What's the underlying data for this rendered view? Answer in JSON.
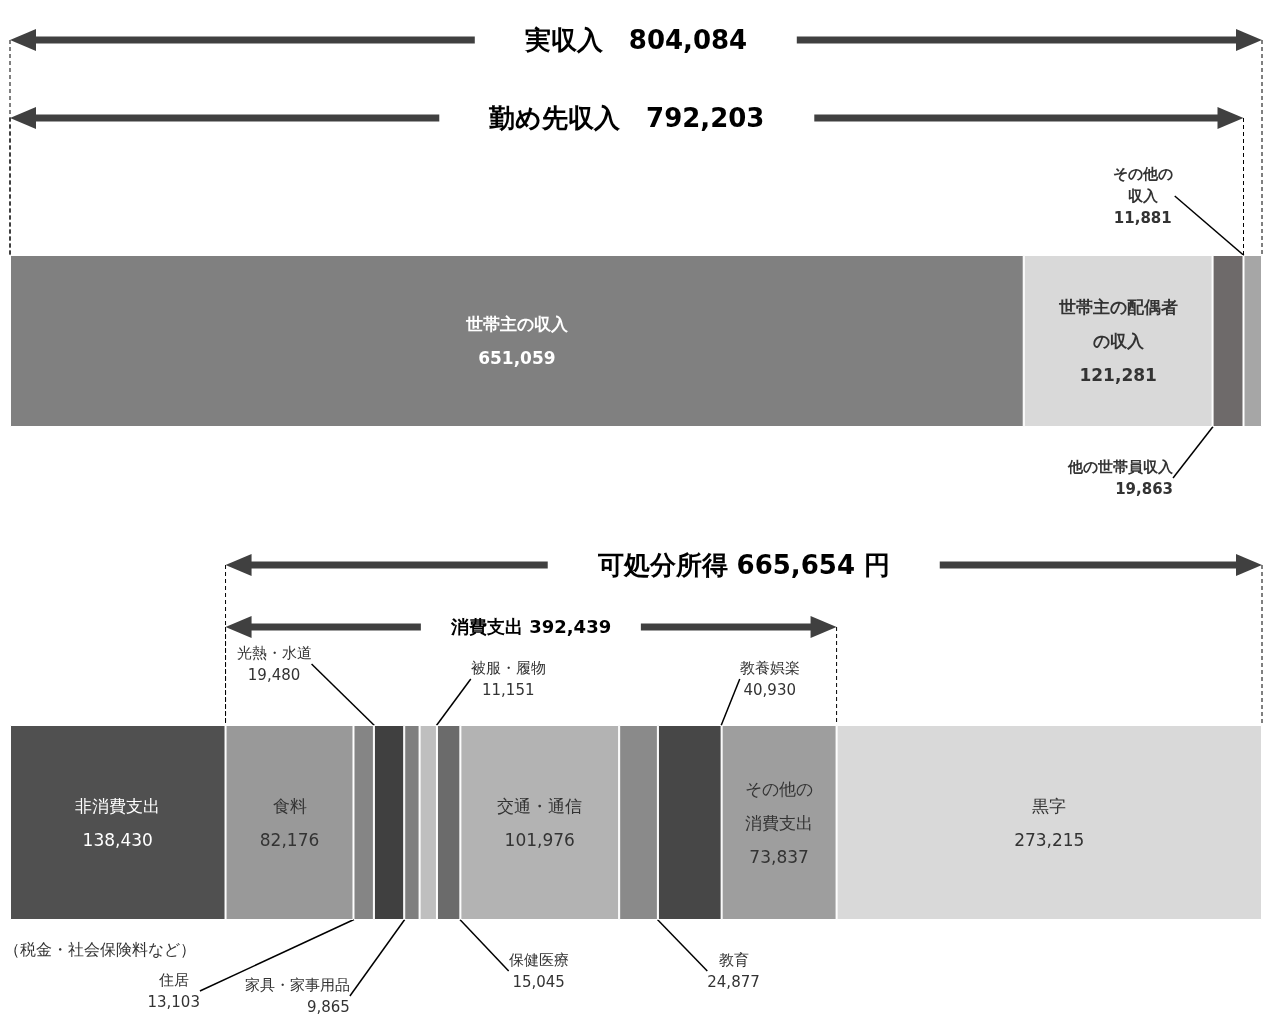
{
  "chart_data": [
    {
      "type": "bar",
      "orientation": "horizontal",
      "stacked": true,
      "tick_labels": false,
      "categories": [
        null
      ],
      "series": [
        {
          "name": "世帯主の収入",
          "color": "#808080",
          "values": [
            651059
          ],
          "value_labels": [
            "651,059"
          ]
        },
        {
          "name": "世帯主の配偶者の収入",
          "color": "#d9d9d9",
          "values": [
            121281
          ],
          "value_labels": [
            "121,281"
          ]
        },
        {
          "name": "他の世帯員収入",
          "color": "#6e6a6a",
          "values": [
            19863
          ],
          "value_labels": [
            "19,863"
          ]
        },
        {
          "name": "その他の収入",
          "color": "#a6a6a6",
          "values": [
            11881
          ],
          "value_labels": [
            "11,881"
          ]
        }
      ],
      "annotations": [
        "実収入　804,084",
        "勤め先収入　792,203"
      ]
    },
    {
      "type": "bar",
      "orientation": "horizontal",
      "stacked": true,
      "tick_labels": false,
      "categories": [
        null
      ],
      "series": [
        {
          "name": "非消費支出",
          "color": "#505050",
          "values": [
            138430
          ],
          "value_labels": [
            "138,430"
          ]
        },
        {
          "name": "食料",
          "color": "#999999",
          "values": [
            82176
          ],
          "value_labels": [
            "82,176"
          ]
        },
        {
          "name": "住居",
          "color": "#858585",
          "values": [
            13103
          ],
          "value_labels": [
            "13,103"
          ]
        },
        {
          "name": "光熱・水道",
          "color": "#404040",
          "values": [
            19480
          ],
          "value_labels": [
            "19,480"
          ]
        },
        {
          "name": "家具・家事用品",
          "color": "#7f7f7f",
          "values": [
            9865
          ],
          "value_labels": [
            "9,865"
          ]
        },
        {
          "name": "被服・履物",
          "color": "#bfbfbf",
          "values": [
            11151
          ],
          "value_labels": [
            "11,151"
          ]
        },
        {
          "name": "保健医療",
          "color": "#6b6b6b",
          "values": [
            15045
          ],
          "value_labels": [
            "15,045"
          ]
        },
        {
          "name": "交通・通信",
          "color": "#b3b3b3",
          "values": [
            101976
          ],
          "value_labels": [
            "101,976"
          ]
        },
        {
          "name": "教育",
          "color": "#8a8a8a",
          "values": [
            24877
          ],
          "value_labels": [
            "24,877"
          ]
        },
        {
          "name": "教養娯楽",
          "color": "#474747",
          "values": [
            40930
          ],
          "value_labels": [
            "40,930"
          ]
        },
        {
          "name": "その他の消費支出",
          "color": "#9e9e9e",
          "values": [
            73837
          ],
          "value_labels": [
            "73,837"
          ]
        },
        {
          "name": "黒字",
          "color": "#d9d9d9",
          "values": [
            273215
          ],
          "value_labels": [
            "273,215"
          ]
        }
      ],
      "annotations": [
        "可処分所得 665,654 円",
        "消費支出 392,439",
        "（税金・社会保険料など）"
      ]
    }
  ]
}
